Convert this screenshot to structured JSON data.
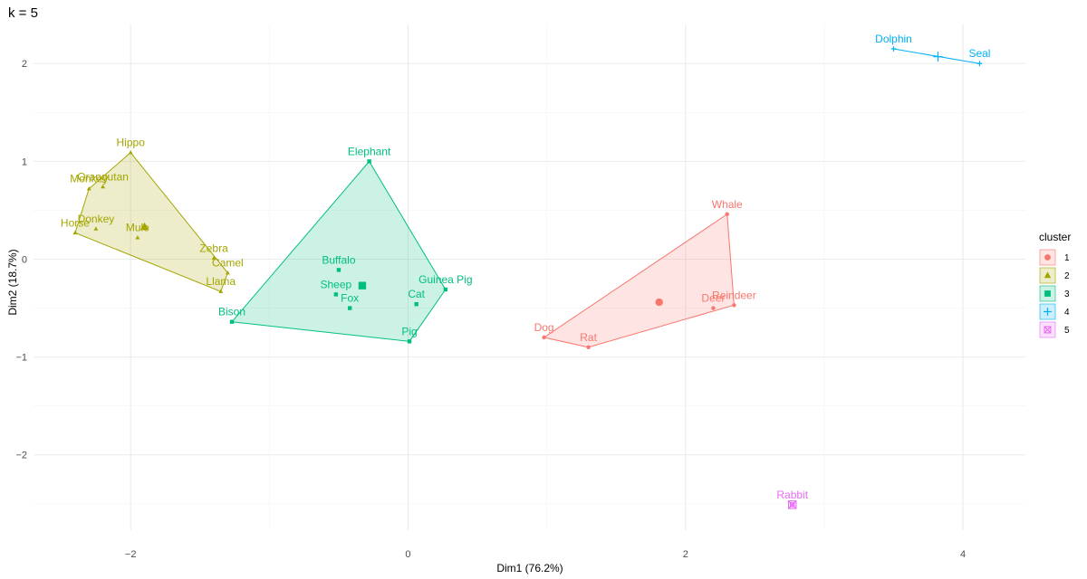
{
  "chart_data": {
    "type": "scatter",
    "title": "k = 5",
    "xlabel": "Dim1 (76.2%)",
    "ylabel": "Dim2 (18.7%)",
    "xlim": [
      -2.7,
      4.45
    ],
    "ylim": [
      -2.77,
      2.4
    ],
    "xticks": [
      -2,
      0,
      2,
      4
    ],
    "yticks": [
      -2,
      -1,
      0,
      1,
      2
    ],
    "grid": true,
    "legend": {
      "title": "cluster",
      "position": "right",
      "labels": [
        "1",
        "2",
        "3",
        "4",
        "5"
      ]
    },
    "colors": {
      "1": "#F8766D",
      "2": "#A3A500",
      "3": "#00BF7D",
      "4": "#00B0F6",
      "5": "#E76BF3"
    },
    "series": [
      {
        "name": "1",
        "centroid": [
          1.81,
          -0.44
        ],
        "hull": [
          "Dog",
          "Rat",
          "Reindeer",
          "Whale"
        ],
        "points": [
          {
            "label": "Whale",
            "x": 2.3,
            "y": 0.46
          },
          {
            "label": "Reindeer",
            "x": 2.35,
            "y": -0.47
          },
          {
            "label": "Deer",
            "x": 2.2,
            "y": -0.5
          },
          {
            "label": "Dog",
            "x": 0.98,
            "y": -0.8
          },
          {
            "label": "Rat",
            "x": 1.3,
            "y": -0.9
          }
        ]
      },
      {
        "name": "2",
        "centroid": [
          -1.9,
          0.33
        ],
        "hull": [
          "Hippo",
          "Camel",
          "Llama",
          "Horse",
          "Monkey"
        ],
        "points": [
          {
            "label": "Hippo",
            "x": -2.0,
            "y": 1.09
          },
          {
            "label": "Orangutan",
            "x": -2.2,
            "y": 0.74
          },
          {
            "label": "Monkey",
            "x": -2.3,
            "y": 0.72
          },
          {
            "label": "Donkey",
            "x": -2.25,
            "y": 0.31
          },
          {
            "label": "Horse",
            "x": -2.4,
            "y": 0.27
          },
          {
            "label": "Mule",
            "x": -1.95,
            "y": 0.22
          },
          {
            "label": "Zebra",
            "x": -1.4,
            "y": 0.01
          },
          {
            "label": "Camel",
            "x": -1.3,
            "y": -0.14
          },
          {
            "label": "Llama",
            "x": -1.35,
            "y": -0.33
          }
        ]
      },
      {
        "name": "3",
        "centroid": [
          -0.33,
          -0.27
        ],
        "hull": [
          "Elephant",
          "Guinea Pig",
          "Pig",
          "Bison"
        ],
        "points": [
          {
            "label": "Elephant",
            "x": -0.28,
            "y": 1.0
          },
          {
            "label": "Buffalo",
            "x": -0.5,
            "y": -0.11
          },
          {
            "label": "Sheep",
            "x": -0.52,
            "y": -0.36
          },
          {
            "label": "Fox",
            "x": -0.42,
            "y": -0.5
          },
          {
            "label": "Guinea Pig",
            "x": 0.27,
            "y": -0.31
          },
          {
            "label": "Cat",
            "x": 0.06,
            "y": -0.46
          },
          {
            "label": "Pig",
            "x": 0.01,
            "y": -0.84
          },
          {
            "label": "Bison",
            "x": -1.27,
            "y": -0.64
          }
        ]
      },
      {
        "name": "4",
        "centroid": [
          3.82,
          2.07
        ],
        "hull": [
          "Dolphin",
          "Seal"
        ],
        "points": [
          {
            "label": "Dolphin",
            "x": 3.5,
            "y": 2.15
          },
          {
            "label": "Seal",
            "x": 4.12,
            "y": 2.0
          }
        ]
      },
      {
        "name": "5",
        "centroid": [
          2.77,
          -2.51
        ],
        "hull": [],
        "points": [
          {
            "label": "Rabbit",
            "x": 2.77,
            "y": -2.51
          }
        ]
      }
    ]
  }
}
